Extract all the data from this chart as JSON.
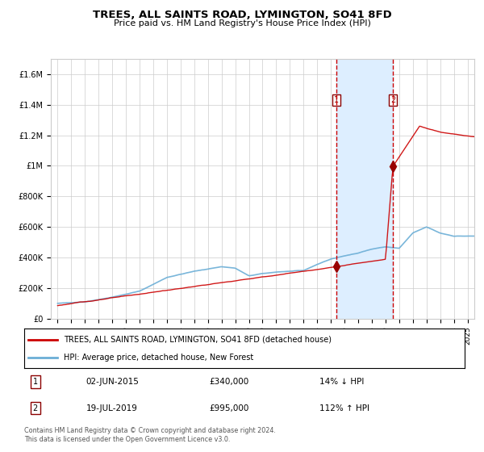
{
  "title": "TREES, ALL SAINTS ROAD, LYMINGTON, SO41 8FD",
  "subtitle": "Price paid vs. HM Land Registry's House Price Index (HPI)",
  "footer": "Contains HM Land Registry data © Crown copyright and database right 2024.\nThis data is licensed under the Open Government Licence v3.0.",
  "legend_line1": "TREES, ALL SAINTS ROAD, LYMINGTON, SO41 8FD (detached house)",
  "legend_line2": "HPI: Average price, detached house, New Forest",
  "transaction1_date": "02-JUN-2015",
  "transaction1_price": "£340,000",
  "transaction1_hpi": "14% ↓ HPI",
  "transaction2_date": "19-JUL-2019",
  "transaction2_price": "£995,000",
  "transaction2_hpi": "112% ↑ HPI",
  "hpi_color": "#6baed6",
  "price_color": "#cc0000",
  "marker_color": "#990000",
  "highlight_color": "#ddeeff",
  "vline_color": "#cc0000",
  "grid_color": "#cccccc",
  "bg_color": "#ffffff",
  "ylim": [
    0,
    1700000
  ],
  "transaction1_year": 2015.42,
  "transaction1_value": 340000,
  "transaction2_year": 2019.54,
  "transaction2_value": 995000,
  "hpi_keypoints_x": [
    1995,
    1997,
    1999,
    2001,
    2003,
    2005,
    2007,
    2008,
    2009,
    2010,
    2011,
    2012,
    2013,
    2014,
    2015,
    2016,
    2017,
    2018,
    2019,
    2020,
    2021,
    2022,
    2023,
    2024,
    2025.5
  ],
  "hpi_keypoints_y": [
    100000,
    110000,
    140000,
    180000,
    270000,
    310000,
    340000,
    330000,
    280000,
    295000,
    305000,
    310000,
    315000,
    355000,
    390000,
    410000,
    430000,
    455000,
    470000,
    460000,
    560000,
    600000,
    560000,
    540000,
    540000
  ],
  "price_keypoints_x": [
    1995,
    2015.42,
    2019.0,
    2019.54,
    2021.5,
    2023.0,
    2025.5
  ],
  "price_keypoints_y": [
    86000,
    340000,
    390000,
    995000,
    1260000,
    1220000,
    1190000
  ]
}
